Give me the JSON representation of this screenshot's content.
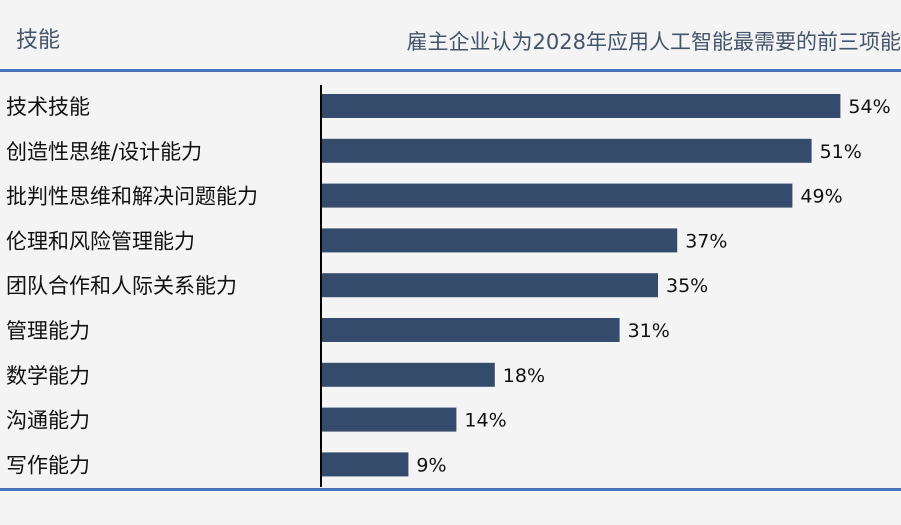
{
  "header": {
    "left": "技能",
    "right": "雇主企业认为2028年应用人工智能最需要的前三项能"
  },
  "colors": {
    "bar": "#344b6c",
    "rule": "#4a72b8",
    "header_text": "#44546a"
  },
  "chart_data": {
    "type": "bar",
    "orientation": "horizontal",
    "categories": [
      "技术技能",
      "创造性思维/设计能力",
      "批判性思维和解决问题能力",
      "伦理和风险管理能力",
      "团队合作和人际关系能力",
      "管理能力",
      "数学能力",
      "沟通能力",
      "写作能力"
    ],
    "values": [
      54,
      51,
      49,
      37,
      35,
      31,
      18,
      14,
      9
    ],
    "value_labels": [
      "54%",
      "51%",
      "49%",
      "37%",
      "35%",
      "31%",
      "18%",
      "14%",
      "9%"
    ],
    "unit": "%",
    "grid": false,
    "legend": "none"
  }
}
